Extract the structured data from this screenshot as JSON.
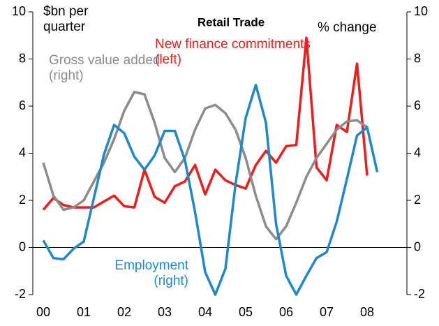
{
  "chart_data": {
    "type": "line",
    "title": "Retail Trade",
    "ylabel": "$bn per quarter",
    "y2label": "% change",
    "categories": [
      "00",
      null,
      null,
      null,
      "01",
      null,
      null,
      null,
      "02",
      null,
      null,
      null,
      "03",
      null,
      null,
      null,
      "04",
      null,
      null,
      null,
      "05",
      null,
      null,
      null,
      "06",
      null,
      null,
      null,
      "07",
      null,
      null,
      null,
      "08",
      null
    ],
    "series": [
      {
        "name": "New finance commitments (left)",
        "color": "#ee1c1c",
        "axis": "y",
        "values": [
          1.6,
          2.1,
          1.8,
          1.7,
          1.7,
          1.7,
          1.95,
          2.2,
          1.75,
          1.7,
          3.3,
          2.15,
          1.9,
          2.6,
          2.8,
          3.5,
          2.25,
          3.3,
          2.85,
          2.65,
          2.5,
          3.5,
          4.1,
          3.6,
          4.3,
          4.35,
          8.9,
          3.4,
          2.85,
          5.2,
          4.9,
          7.8,
          3.05,
          null
        ]
      },
      {
        "name": "Gross value added (right)",
        "color": "#8c8c8c",
        "axis": "y2",
        "values": [
          3.6,
          2.2,
          1.6,
          1.7,
          2.0,
          2.8,
          3.6,
          4.6,
          5.8,
          6.6,
          6.5,
          5.3,
          3.8,
          3.2,
          3.8,
          5.0,
          5.9,
          6.05,
          5.7,
          5.0,
          3.8,
          2.2,
          0.9,
          0.35,
          0.9,
          1.9,
          3.0,
          3.8,
          4.4,
          5.0,
          5.35,
          5.4,
          5.1,
          null
        ]
      },
      {
        "name": "Employment (right)",
        "color": "#1e88c8",
        "axis": "y2",
        "values": [
          0.3,
          -0.45,
          -0.5,
          -0.05,
          0.25,
          2.1,
          3.95,
          5.2,
          4.85,
          3.85,
          3.3,
          3.9,
          4.95,
          4.95,
          3.7,
          1.5,
          -1.05,
          -2.0,
          -0.9,
          2.7,
          5.5,
          6.9,
          5.3,
          1.0,
          -1.2,
          -2.0,
          -1.2,
          -0.45,
          -0.2,
          1.1,
          2.9,
          4.75,
          5.1,
          3.2
        ]
      }
    ],
    "ylim": [
      -2,
      10
    ],
    "yticks": [
      -2,
      0,
      2,
      4,
      6,
      8,
      10
    ],
    "y2lim": [
      -2,
      10
    ],
    "y2ticks": [
      -2,
      0,
      2,
      4,
      6,
      8,
      10
    ]
  }
}
